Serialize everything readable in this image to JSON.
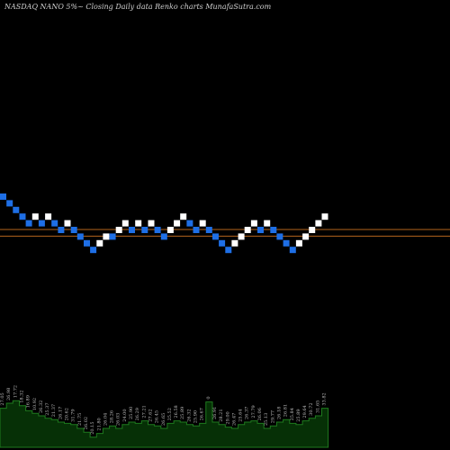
{
  "chart_data": {
    "type": "renko",
    "title": "NASDAQ NANO 5%~  Closing Daily data  Renko  charts MunafaSutra.com",
    "bricks": [
      {
        "dir": "down",
        "level": 10
      },
      {
        "dir": "down",
        "level": 9
      },
      {
        "dir": "down",
        "level": 8
      },
      {
        "dir": "down",
        "level": 7
      },
      {
        "dir": "down",
        "level": 6
      },
      {
        "dir": "up",
        "level": 7
      },
      {
        "dir": "down",
        "level": 6
      },
      {
        "dir": "up",
        "level": 7
      },
      {
        "dir": "down",
        "level": 6
      },
      {
        "dir": "down",
        "level": 5
      },
      {
        "dir": "up",
        "level": 6
      },
      {
        "dir": "down",
        "level": 5
      },
      {
        "dir": "down",
        "level": 4
      },
      {
        "dir": "down",
        "level": 3
      },
      {
        "dir": "down",
        "level": 2
      },
      {
        "dir": "up",
        "level": 3
      },
      {
        "dir": "up",
        "level": 4
      },
      {
        "dir": "down",
        "level": 4
      },
      {
        "dir": "up",
        "level": 5
      },
      {
        "dir": "up",
        "level": 6
      },
      {
        "dir": "down",
        "level": 5
      },
      {
        "dir": "up",
        "level": 6
      },
      {
        "dir": "down",
        "level": 5
      },
      {
        "dir": "up",
        "level": 6
      },
      {
        "dir": "down",
        "level": 5
      },
      {
        "dir": "down",
        "level": 4
      },
      {
        "dir": "up",
        "level": 5
      },
      {
        "dir": "up",
        "level": 6
      },
      {
        "dir": "up",
        "level": 7
      },
      {
        "dir": "down",
        "level": 6
      },
      {
        "dir": "down",
        "level": 5
      },
      {
        "dir": "up",
        "level": 6
      },
      {
        "dir": "down",
        "level": 5
      },
      {
        "dir": "down",
        "level": 4
      },
      {
        "dir": "down",
        "level": 3
      },
      {
        "dir": "down",
        "level": 2
      },
      {
        "dir": "up",
        "level": 3
      },
      {
        "dir": "up",
        "level": 4
      },
      {
        "dir": "up",
        "level": 5
      },
      {
        "dir": "up",
        "level": 6
      },
      {
        "dir": "down",
        "level": 5
      },
      {
        "dir": "up",
        "level": 6
      },
      {
        "dir": "down",
        "level": 5
      },
      {
        "dir": "down",
        "level": 4
      },
      {
        "dir": "down",
        "level": 3
      },
      {
        "dir": "down",
        "level": 2
      },
      {
        "dir": "up",
        "level": 3
      },
      {
        "dir": "up",
        "level": 4
      },
      {
        "dir": "up",
        "level": 5
      },
      {
        "dir": "up",
        "level": 6
      },
      {
        "dir": "up",
        "level": 7
      }
    ],
    "reference_lines": [
      5,
      4
    ],
    "volume_labels": [
      "27.05",
      "26.98",
      "17.72",
      "18.32",
      "16.89",
      "10.92",
      "26.32",
      "25.37",
      "21.37",
      "26.17",
      "20.62",
      "31.79",
      "21.75",
      "26.02",
      "20.15",
      "21.80",
      "26.04",
      "28.26",
      "26.03",
      "24.00",
      "25.90",
      "26.29",
      "27.21",
      "27.62",
      "26.45",
      "26.65",
      "25.52",
      "26.58",
      "25.89",
      "26.32",
      "25.90",
      "26.67",
      "0",
      "26.91",
      "28.21",
      "29.00",
      "26.47",
      "25.64",
      "26.37",
      "27.79",
      "26.06",
      "25.13",
      "29.77",
      "26.18",
      "26.81",
      "25.84",
      "25.89",
      "29.64",
      "30.72",
      "31.65",
      "33.82"
    ],
    "volumes": [
      0.62,
      0.7,
      0.74,
      0.66,
      0.58,
      0.54,
      0.5,
      0.46,
      0.44,
      0.4,
      0.38,
      0.36,
      0.3,
      0.24,
      0.16,
      0.22,
      0.3,
      0.34,
      0.3,
      0.36,
      0.4,
      0.38,
      0.42,
      0.36,
      0.34,
      0.3,
      0.38,
      0.42,
      0.4,
      0.36,
      0.34,
      0.38,
      0.72,
      0.4,
      0.36,
      0.32,
      0.3,
      0.36,
      0.4,
      0.42,
      0.38,
      0.3,
      0.34,
      0.4,
      0.44,
      0.38,
      0.36,
      0.42,
      0.46,
      0.5,
      0.62
    ],
    "colors": {
      "up": "#ffffff",
      "down": "#1e6fe6",
      "background": "#000000",
      "ref_line": "#b5651d",
      "volume_fill": "#063006",
      "volume_stroke": "#1e7a1e",
      "label": "#bdbdbd"
    }
  }
}
